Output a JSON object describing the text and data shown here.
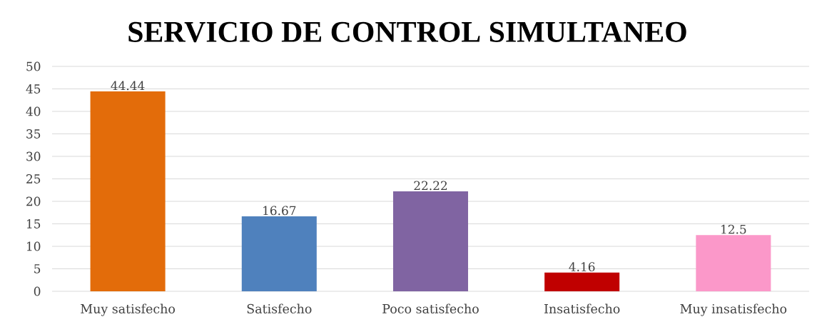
{
  "chart_data": {
    "type": "bar",
    "title": "SERVICIO DE CONTROL SIMULTANEO",
    "categories": [
      "Muy satisfecho",
      "Satisfecho",
      "Poco satisfecho",
      "Insatisfecho",
      "Muy insatisfecho"
    ],
    "values": [
      44.44,
      16.67,
      22.22,
      4.16,
      12.5
    ],
    "colors": [
      "#e36c0a",
      "#4f81bd",
      "#8064a2",
      "#c00000",
      "#fb98c9"
    ],
    "ylim": [
      0,
      50
    ],
    "yticks": [
      0,
      5,
      10,
      15,
      20,
      25,
      30,
      35,
      40,
      45,
      50
    ],
    "grid": "y",
    "data_labels": true
  }
}
